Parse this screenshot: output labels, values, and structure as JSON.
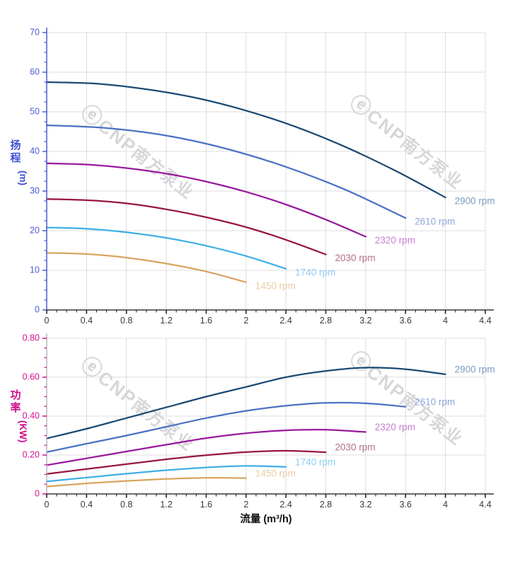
{
  "watermark": {
    "logo": "ⓔ",
    "brand": "CNP",
    "name": "南方泵业",
    "color": "#d6d7da"
  },
  "style": {
    "grid": "#dcdcdc",
    "x_spine": "#55565a",
    "x_tick": "#222222",
    "x_label": "#3a3a3a",
    "x_title_color": "#111111"
  },
  "x_axis_title": "流量 (m³/h)",
  "chart_data": [
    {
      "type": "line",
      "title": "",
      "xlabel": "流量 (m³/h)",
      "ylabel": "扬程 (m)",
      "ylabel_chars": [
        "扬",
        "程"
      ],
      "ylabel_unit": "(m)",
      "axis_color": "#3e4fd2",
      "tick_color": "#4a5ad4",
      "spine_color": "#4a5ad4",
      "xlim": [
        0,
        4.4
      ],
      "ylim": [
        0,
        70
      ],
      "x_minor": 0.1,
      "y_minor": 2.5,
      "legend_position": "curve-end-labels",
      "grid": true,
      "x_ticks": [
        [
          0,
          "0"
        ],
        [
          0.4,
          "0.4"
        ],
        [
          0.8,
          "0.8"
        ],
        [
          1.2,
          "1.2"
        ],
        [
          1.6,
          "1.6"
        ],
        [
          2,
          "2"
        ],
        [
          2.4,
          "2.4"
        ],
        [
          2.8,
          "2.8"
        ],
        [
          3.2,
          "3.2"
        ],
        [
          3.6,
          "3.6"
        ],
        [
          4,
          "4"
        ],
        [
          4.4,
          "4.4"
        ]
      ],
      "y_ticks": [
        [
          0,
          "0"
        ],
        [
          10,
          "10"
        ],
        [
          20,
          "20"
        ],
        [
          30,
          "30"
        ],
        [
          40,
          "40"
        ],
        [
          50,
          "50"
        ],
        [
          60,
          "60"
        ],
        [
          70,
          "70"
        ]
      ],
      "series": [
        {
          "name": "2900 rpm",
          "color": "#1a4a74",
          "label_color": "#7d9bc2",
          "points": [
            [
              0,
              57.5
            ],
            [
              0.5,
              57.1
            ],
            [
              1,
              55.7
            ],
            [
              1.5,
              53.5
            ],
            [
              2,
              50.3
            ],
            [
              2.5,
              46.2
            ],
            [
              3,
              41.1
            ],
            [
              3.5,
              35.1
            ],
            [
              4,
              28.4
            ]
          ]
        },
        {
          "name": "2610 rpm",
          "color": "#4a72c4",
          "label_color": "#8fa6da",
          "points": [
            [
              0,
              46.6
            ],
            [
              0.6,
              45.9
            ],
            [
              1.2,
              44.0
            ],
            [
              1.8,
              40.7
            ],
            [
              2.4,
              36.1
            ],
            [
              3,
              30.3
            ],
            [
              3.6,
              23.2
            ]
          ]
        },
        {
          "name": "2320 rpm",
          "color": "#99199d",
          "label_color": "#c77fd2",
          "points": [
            [
              0,
              37
            ],
            [
              0.4,
              36.7
            ],
            [
              0.8,
              35.8
            ],
            [
              1.2,
              34.4
            ],
            [
              1.6,
              32.4
            ],
            [
              2,
              29.8
            ],
            [
              2.4,
              26.6
            ],
            [
              2.8,
              22.8
            ],
            [
              3.2,
              18.5
            ]
          ]
        },
        {
          "name": "2030 rpm",
          "color": "#97173e",
          "label_color": "#b26f85",
          "points": [
            [
              0,
              28
            ],
            [
              0.4,
              27.7
            ],
            [
              0.8,
              26.9
            ],
            [
              1.2,
              25.4
            ],
            [
              1.6,
              23.4
            ],
            [
              2,
              20.9
            ],
            [
              2.4,
              17.7
            ],
            [
              2.8,
              14.0
            ]
          ]
        },
        {
          "name": "1740 rpm",
          "color": "#3fafe4",
          "label_color": "#8fcdf2",
          "points": [
            [
              0,
              20.8
            ],
            [
              0.4,
              20.5
            ],
            [
              0.8,
              19.6
            ],
            [
              1.2,
              18.2
            ],
            [
              1.6,
              16.2
            ],
            [
              2,
              13.6
            ],
            [
              2.4,
              10.4
            ]
          ]
        },
        {
          "name": "1450 rpm",
          "color": "#d9a360",
          "label_color": "#e9cda4",
          "points": [
            [
              0,
              14.4
            ],
            [
              0.4,
              14.1
            ],
            [
              0.8,
              13.2
            ],
            [
              1.2,
              11.7
            ],
            [
              1.6,
              9.7
            ],
            [
              2,
              7.0
            ]
          ]
        }
      ]
    },
    {
      "type": "line",
      "title": "",
      "xlabel": "流量 (m³/h)",
      "ylabel": "功率 (KW)",
      "ylabel_chars": [
        "功",
        "率"
      ],
      "ylabel_unit": "(KW)",
      "axis_color": "#cc0f8a",
      "tick_color": "#d6108e",
      "spine_color": "#b7b7c0",
      "xlim": [
        0,
        4.4
      ],
      "ylim": [
        0,
        0.8
      ],
      "x_minor": 0.1,
      "y_minor": 0.05,
      "legend_position": "curve-end-labels",
      "grid": true,
      "x_ticks": [
        [
          0,
          "0"
        ],
        [
          0.4,
          "0.4"
        ],
        [
          0.8,
          "0.8"
        ],
        [
          1.2,
          "1.2"
        ],
        [
          1.6,
          "1.6"
        ],
        [
          2,
          "2"
        ],
        [
          2.4,
          "2.4"
        ],
        [
          2.8,
          "2.8"
        ],
        [
          3.2,
          "3.2"
        ],
        [
          3.6,
          "3.6"
        ],
        [
          4,
          "4"
        ],
        [
          4.4,
          "4.4"
        ]
      ],
      "y_ticks": [
        [
          0,
          "0"
        ],
        [
          0.2,
          "0.20"
        ],
        [
          0.4,
          "0.40"
        ],
        [
          0.6,
          "0.60"
        ],
        [
          0.8,
          "0.80"
        ]
      ],
      "series": [
        {
          "name": "2900 rpm",
          "color": "#1a4a74",
          "label_color": "#7d9bc2",
          "points": [
            [
              0,
              0.285
            ],
            [
              0.4,
              0.335
            ],
            [
              0.8,
              0.39
            ],
            [
              1.2,
              0.445
            ],
            [
              1.6,
              0.5
            ],
            [
              2.0,
              0.55
            ],
            [
              2.4,
              0.6
            ],
            [
              2.8,
              0.632
            ],
            [
              3.2,
              0.649
            ],
            [
              3.6,
              0.641
            ],
            [
              4.0,
              0.615
            ]
          ]
        },
        {
          "name": "2610 rpm",
          "color": "#4a72c4",
          "label_color": "#8fa6da",
          "points": [
            [
              0,
              0.215
            ],
            [
              0.4,
              0.258
            ],
            [
              0.8,
              0.3
            ],
            [
              1.2,
              0.345
            ],
            [
              1.6,
              0.39
            ],
            [
              2.0,
              0.427
            ],
            [
              2.4,
              0.453
            ],
            [
              2.8,
              0.468
            ],
            [
              3.2,
              0.466
            ],
            [
              3.6,
              0.448
            ]
          ]
        },
        {
          "name": "2320 rpm",
          "color": "#99199d",
          "label_color": "#c77fd2",
          "points": [
            [
              0,
              0.148
            ],
            [
              0.4,
              0.183
            ],
            [
              0.8,
              0.218
            ],
            [
              1.2,
              0.253
            ],
            [
              1.6,
              0.287
            ],
            [
              2.0,
              0.312
            ],
            [
              2.4,
              0.327
            ],
            [
              2.8,
              0.33
            ],
            [
              3.2,
              0.318
            ]
          ]
        },
        {
          "name": "2030 rpm",
          "color": "#97173e",
          "label_color": "#b26f85",
          "points": [
            [
              0,
              0.103
            ],
            [
              0.4,
              0.128
            ],
            [
              0.8,
              0.153
            ],
            [
              1.2,
              0.178
            ],
            [
              1.6,
              0.199
            ],
            [
              2.0,
              0.215
            ],
            [
              2.4,
              0.222
            ],
            [
              2.8,
              0.214
            ]
          ]
        },
        {
          "name": "1740 rpm",
          "color": "#3fafe4",
          "label_color": "#8fcdf2",
          "points": [
            [
              0,
              0.064
            ],
            [
              0.4,
              0.084
            ],
            [
              0.8,
              0.104
            ],
            [
              1.2,
              0.122
            ],
            [
              1.6,
              0.136
            ],
            [
              2.0,
              0.144
            ],
            [
              2.4,
              0.139
            ]
          ]
        },
        {
          "name": "1450 rpm",
          "color": "#d9a360",
          "label_color": "#e9cda4",
          "points": [
            [
              0,
              0.038
            ],
            [
              0.4,
              0.054
            ],
            [
              0.8,
              0.067
            ],
            [
              1.2,
              0.077
            ],
            [
              1.6,
              0.083
            ],
            [
              2.0,
              0.081
            ]
          ]
        }
      ]
    }
  ]
}
